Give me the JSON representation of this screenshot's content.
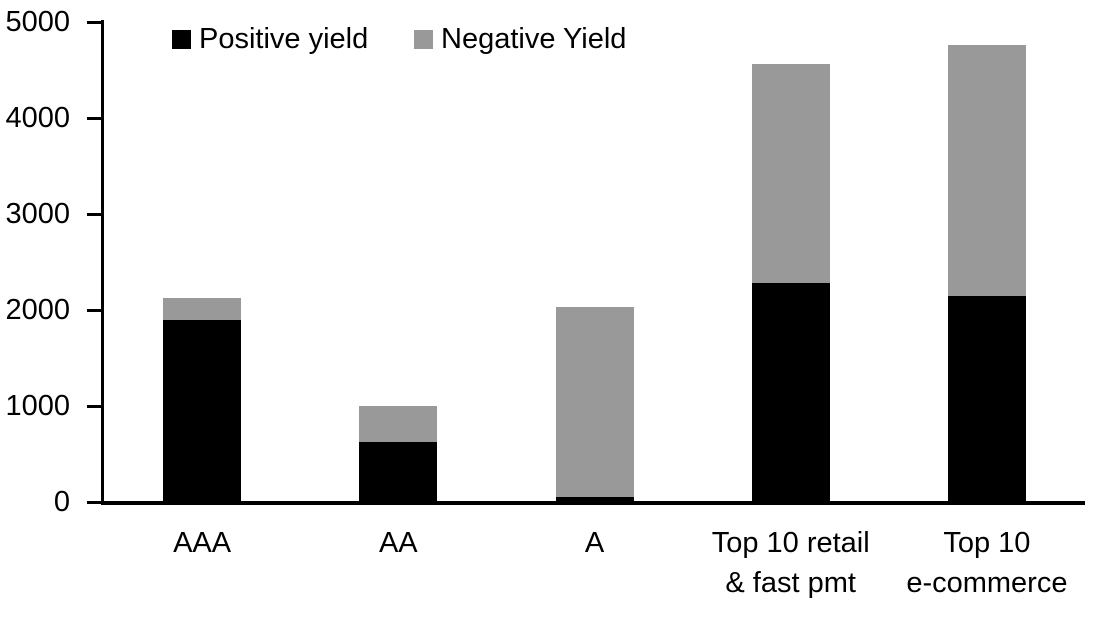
{
  "chart_data": {
    "type": "bar",
    "stacked": true,
    "title": "",
    "xlabel": "",
    "ylabel": "",
    "grid": false,
    "legend_position": "top",
    "categories": [
      "AAA",
      "AA",
      "A",
      "Top 10 retail\n& fast pmt",
      "Top 10\ne-commerce"
    ],
    "series": [
      {
        "name": "Positive yield",
        "color": "#000000",
        "values": [
          1900,
          630,
          50,
          2280,
          2150
        ]
      },
      {
        "name": "Negative Yield",
        "color": "#999999",
        "values": [
          220,
          370,
          1980,
          2280,
          2610
        ]
      }
    ],
    "totals": [
      2120,
      1000,
      2030,
      4560,
      4760
    ],
    "ylim": [
      0,
      5000
    ],
    "yticks": [
      0,
      1000,
      2000,
      3000,
      4000,
      5000
    ]
  }
}
